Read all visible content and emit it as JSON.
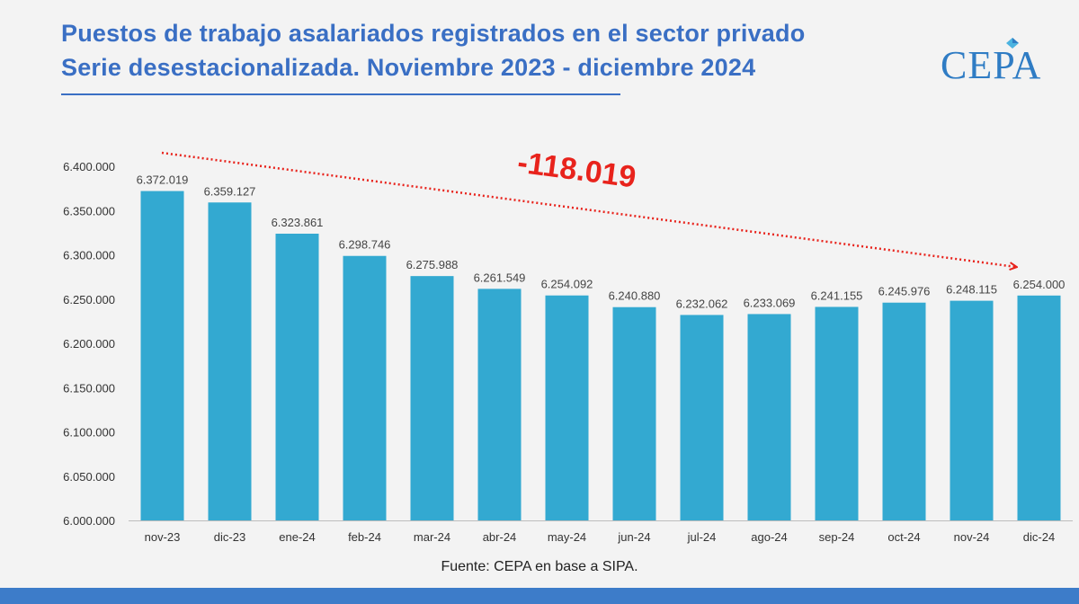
{
  "header": {
    "title_line1": "Puestos de trabajo asalariados registrados en el sector privado",
    "title_line2": "Serie desestacionalizada. Noviembre 2023 - diciembre 2024"
  },
  "logo": {
    "text": "CEPA",
    "color": "#2f7cc4"
  },
  "footer": {
    "source": "Fuente: CEPA en base a SIPA."
  },
  "colors": {
    "title": "#3a6fc4",
    "bar": "#33a9d1",
    "annotation": "#e8231c",
    "bottom_bar": "#3d7cc9"
  },
  "chart_data": {
    "type": "bar",
    "categories": [
      "nov-23",
      "dic-23",
      "ene-24",
      "feb-24",
      "mar-24",
      "abr-24",
      "may-24",
      "jun-24",
      "jul-24",
      "ago-24",
      "sep-24",
      "oct-24",
      "nov-24",
      "dic-24"
    ],
    "values": [
      6372019,
      6359127,
      6323861,
      6298746,
      6275988,
      6261549,
      6254092,
      6240880,
      6232062,
      6233069,
      6241155,
      6245976,
      6248115,
      6254000
    ],
    "data_labels": [
      "6.372.019",
      "6.359.127",
      "6.323.861",
      "6.298.746",
      "6.275.988",
      "6.261.549",
      "6.254.092",
      "6.240.880",
      "6.232.062",
      "6.233.069",
      "6.241.155",
      "6.245.976",
      "6.248.115",
      "6.254.000"
    ],
    "ylim": [
      6000000,
      6400000
    ],
    "yticks": [
      6000000,
      6050000,
      6100000,
      6150000,
      6200000,
      6250000,
      6300000,
      6350000,
      6400000
    ],
    "ytick_labels": [
      "6.000.000",
      "6.050.000",
      "6.100.000",
      "6.150.000",
      "6.200.000",
      "6.250.000",
      "6.300.000",
      "6.350.000",
      "6.400.000"
    ],
    "grid": false,
    "annotation": {
      "text": "-118.019",
      "style": "dotted red arrow from nov-23 to dic-24"
    }
  }
}
